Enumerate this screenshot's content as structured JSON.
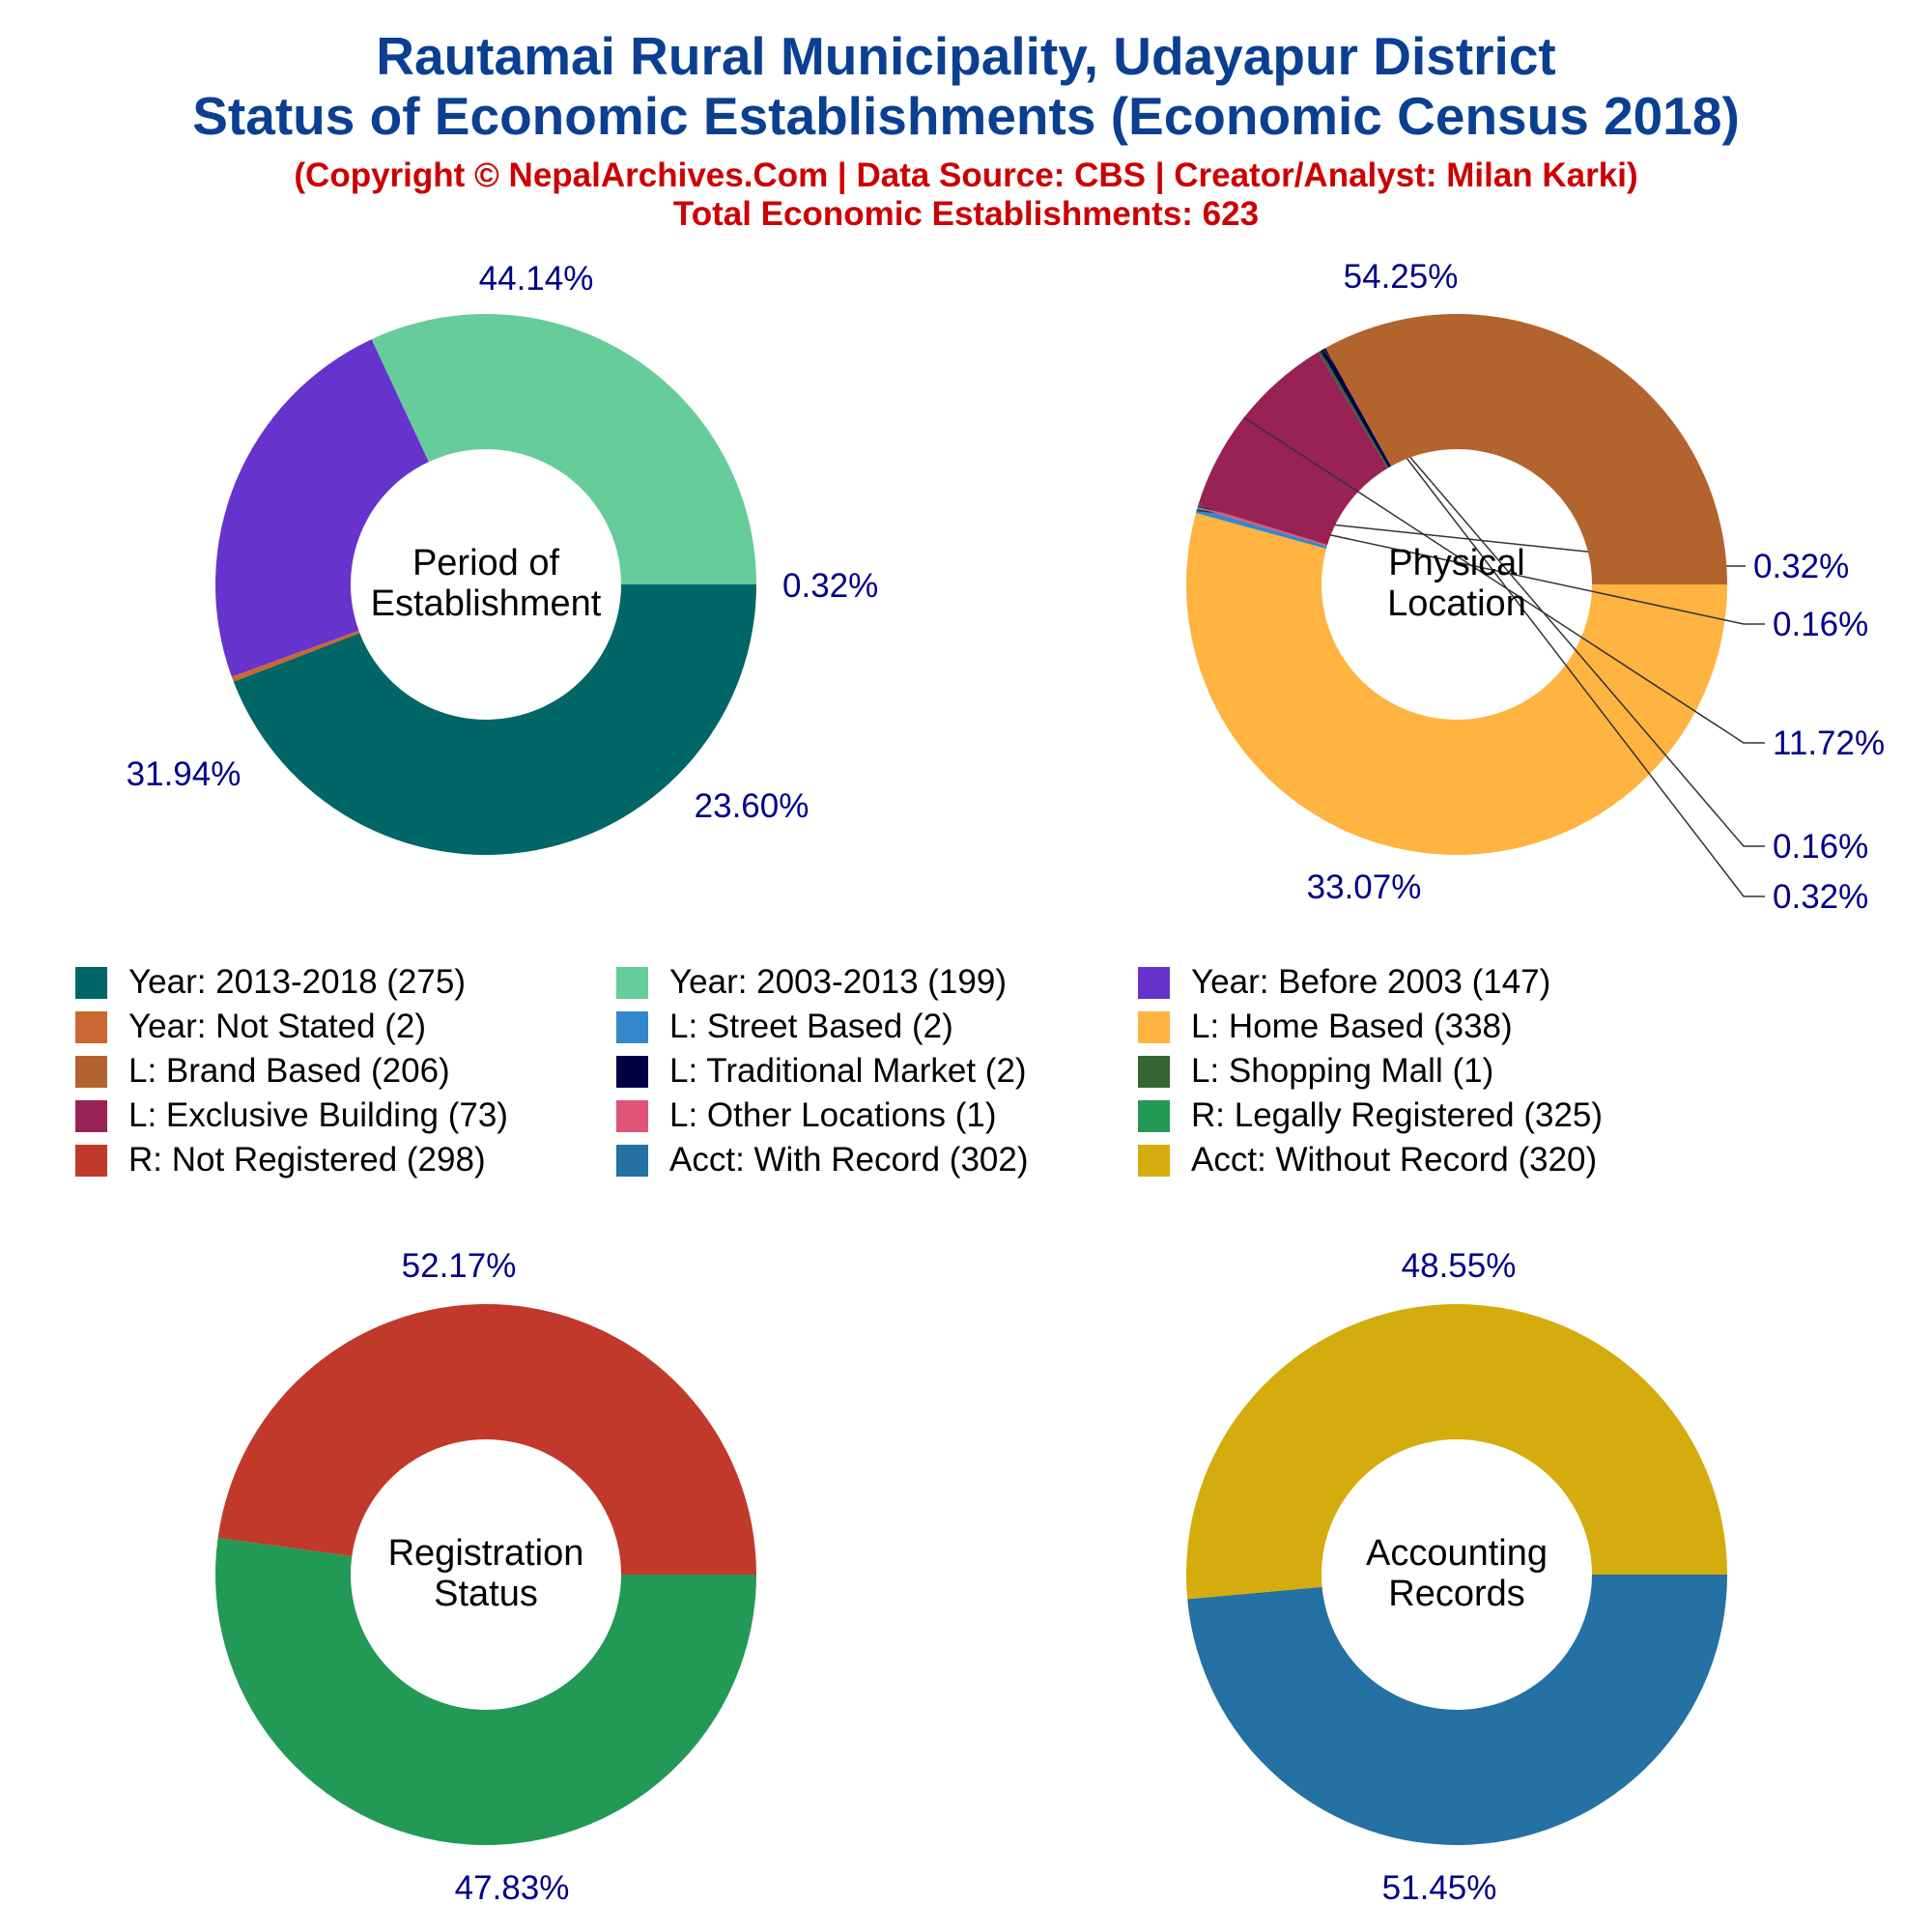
{
  "header": {
    "title_line1": "Rautamai Rural Municipality, Udayapur District",
    "title_line2": "Status of Economic Establishments (Economic Census 2018)",
    "copyright": "(Copyright © NepalArchives.Com | Data Source: CBS | Creator/Analyst: Milan Karki)",
    "total": "Total Economic Establishments: 623"
  },
  "legend": [
    {
      "label": "Year: 2013-2018 (275)",
      "color": "#006666"
    },
    {
      "label": "Year: 2003-2013 (199)",
      "color": "#66cc99"
    },
    {
      "label": "Year: Before 2003 (147)",
      "color": "#6633cc"
    },
    {
      "label": "Year: Not Stated (2)",
      "color": "#cc6633"
    },
    {
      "label": "L: Street Based (2)",
      "color": "#3388cc"
    },
    {
      "label": "L: Home Based (338)",
      "color": "#ffb340"
    },
    {
      "label": "L: Brand Based (206)",
      "color": "#b3632e"
    },
    {
      "label": "L: Traditional Market (2)",
      "color": "#000044"
    },
    {
      "label": "L: Shopping Mall (1)",
      "color": "#336633"
    },
    {
      "label": "L: Exclusive Building (73)",
      "color": "#992255"
    },
    {
      "label": "L: Other Locations (1)",
      "color": "#e05577"
    },
    {
      "label": "R: Legally Registered (325)",
      "color": "#229955"
    },
    {
      "label": "R: Not Registered (298)",
      "color": "#c0392b"
    },
    {
      "label": "Acct: With Record (302)",
      "color": "#2471a3"
    },
    {
      "label": "Acct: Without Record (320)",
      "color": "#d4ac0d"
    }
  ],
  "chart_data": [
    {
      "type": "pie",
      "center_label": [
        "Period of",
        "Establishment"
      ],
      "slices": [
        {
          "category": "Year: 2013-2018",
          "value": 275,
          "label": "44.14%",
          "color": "#006666"
        },
        {
          "category": "Year: Not Stated",
          "value": 2,
          "label": "0.32%",
          "color": "#cc6633"
        },
        {
          "category": "Year: Before 2003",
          "value": 147,
          "label": "23.60%",
          "color": "#6633cc"
        },
        {
          "category": "Year: 2003-2013",
          "value": 199,
          "label": "31.94%",
          "color": "#66cc99"
        }
      ]
    },
    {
      "type": "pie",
      "center_label": [
        "Physical",
        "Location"
      ],
      "slices": [
        {
          "category": "L: Home Based",
          "value": 338,
          "label": "54.25%",
          "color": "#ffb340"
        },
        {
          "category": "L: Street Based",
          "value": 2,
          "label": "0.32%",
          "color": "#3388cc"
        },
        {
          "category": "L: Other Locations",
          "value": 1,
          "label": "0.16%",
          "color": "#e05577"
        },
        {
          "category": "L: Exclusive Building",
          "value": 73,
          "label": "11.72%",
          "color": "#992255"
        },
        {
          "category": "L: Shopping Mall",
          "value": 1,
          "label": "0.16%",
          "color": "#336633"
        },
        {
          "category": "L: Traditional Market",
          "value": 2,
          "label": "0.32%",
          "color": "#000044"
        },
        {
          "category": "L: Brand Based",
          "value": 206,
          "label": "33.07%",
          "color": "#b3632e"
        }
      ]
    },
    {
      "type": "pie",
      "center_label": [
        "Registration",
        "Status"
      ],
      "slices": [
        {
          "category": "R: Legally Registered",
          "value": 325,
          "label": "52.17%",
          "color": "#229955"
        },
        {
          "category": "R: Not Registered",
          "value": 298,
          "label": "47.83%",
          "color": "#c0392b"
        }
      ]
    },
    {
      "type": "pie",
      "center_label": [
        "Accounting",
        "Records"
      ],
      "slices": [
        {
          "category": "Acct: With Record",
          "value": 302,
          "label": "48.55%",
          "color": "#2471a3"
        },
        {
          "category": "Acct: Without Record",
          "value": 320,
          "label": "51.45%",
          "color": "#d4ac0d"
        }
      ]
    }
  ]
}
